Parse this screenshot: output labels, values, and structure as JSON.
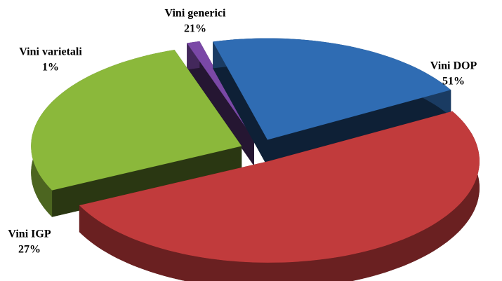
{
  "chart_data": {
    "type": "pie",
    "categories": [
      "Vini generici",
      "Vini DOP",
      "Vini IGP",
      "Vini varietali"
    ],
    "values": [
      21,
      51,
      27,
      1
    ],
    "value_labels": [
      "21%",
      "51%",
      "27%",
      "1%"
    ],
    "colors": [
      "#2f6cb3",
      "#c13b3c",
      "#8bb83b",
      "#7a48a6"
    ]
  }
}
